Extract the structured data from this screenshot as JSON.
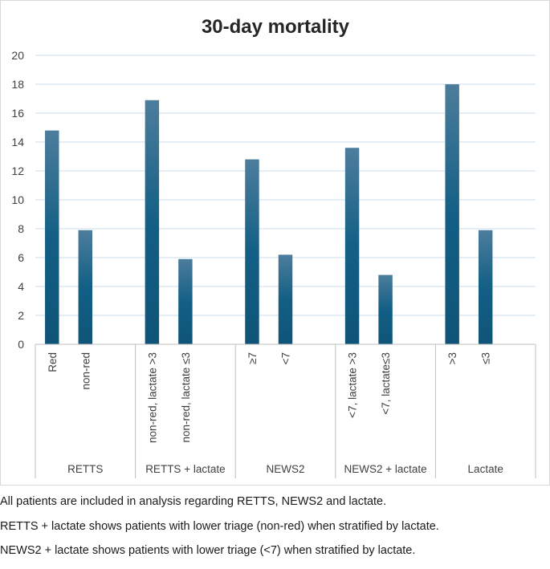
{
  "chart_data": {
    "type": "bar",
    "title": "30-day mortality",
    "xlabel": "",
    "ylabel": "",
    "ylim": [
      0,
      20
    ],
    "yticks": [
      0,
      2,
      4,
      6,
      8,
      10,
      12,
      14,
      16,
      18,
      20
    ],
    "grid": true,
    "legend": "none",
    "bar_color": "#1a5f85",
    "groups": [
      {
        "name": "RETTS",
        "categories": [
          "Red",
          "non-red"
        ],
        "values": [
          14.8,
          7.9
        ]
      },
      {
        "name": "RETTS + lactate",
        "categories": [
          "non-red, lactate >3",
          "non-red, lactate ≤3"
        ],
        "values": [
          16.9,
          5.9
        ]
      },
      {
        "name": "NEWS2",
        "categories": [
          "≥7",
          "<7"
        ],
        "values": [
          12.8,
          6.2
        ]
      },
      {
        "name": "NEWS2 + lactate",
        "categories": [
          "<7, lactate >3",
          "<7, lactate≤3"
        ],
        "values": [
          13.6,
          4.8
        ]
      },
      {
        "name": "Lactate",
        "categories": [
          ">3",
          "≤3"
        ],
        "values": [
          18.0,
          7.9
        ]
      }
    ]
  },
  "notes": {
    "line1": "All patients are included in analysis regarding RETTS, NEWS2 and lactate.",
    "line2": "RETTS + lactate shows patients with lower triage (non-red) when stratified by lactate.",
    "line3": "NEWS2 + lactate shows patients with lower triage (<7) when stratified by lactate."
  }
}
